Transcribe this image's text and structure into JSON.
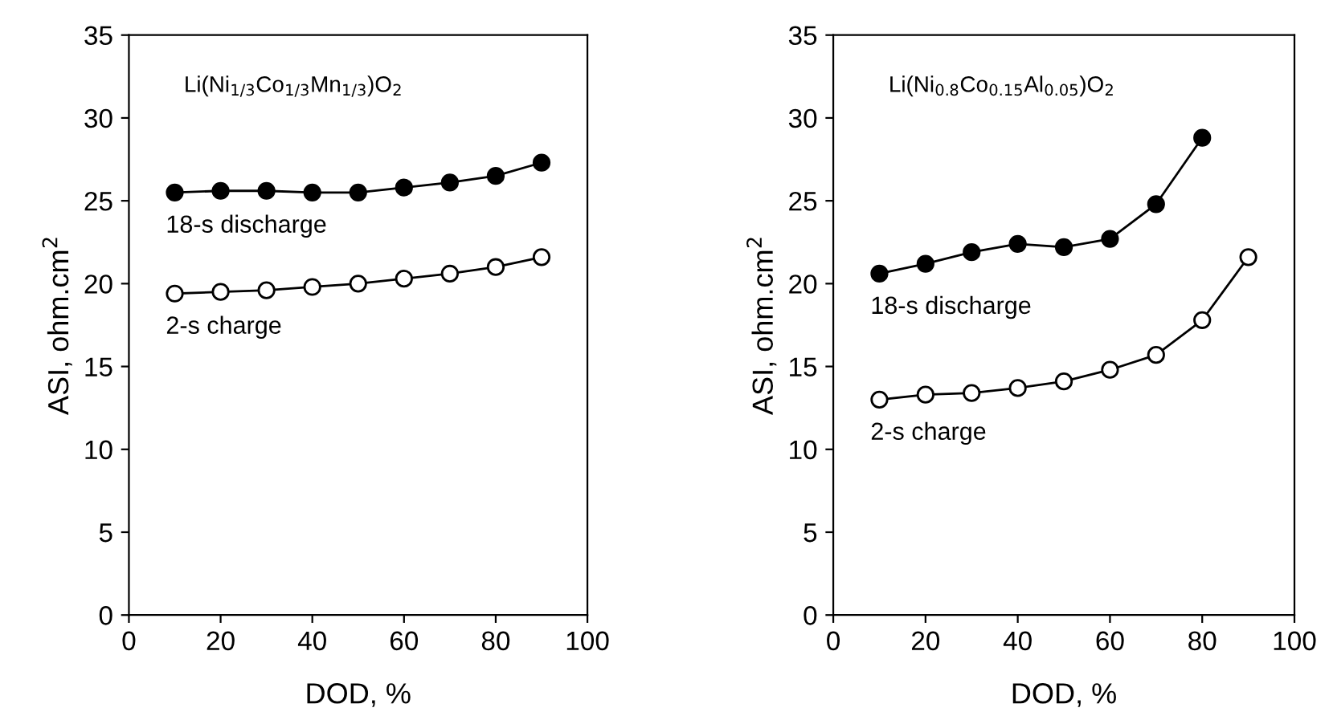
{
  "chart_data": [
    {
      "type": "line",
      "xlabel": "DOD, %",
      "ylabel": "ASI, ohm.cm$^{2}$",
      "annotations": [
        "Li(Ni$_{1/3}$Co$_{1/3}$Mn$_{1/3}$)O$_{2}$"
      ],
      "x": [
        10,
        20,
        30,
        40,
        50,
        60,
        70,
        80,
        90
      ],
      "xlim": [
        0,
        100
      ],
      "xticks": [
        0,
        20,
        40,
        60,
        80,
        100
      ],
      "ylim": [
        0,
        35
      ],
      "yticks": [
        0,
        5,
        10,
        15,
        20,
        25,
        30,
        35
      ],
      "marker": "circle",
      "legend": false,
      "grid": false,
      "series": [
        {
          "name": "18-s discharge",
          "color": "#000000",
          "values": [
            25.5,
            25.6,
            25.6,
            25.5,
            25.5,
            25.8,
            26.1,
            26.5,
            27.3
          ]
        },
        {
          "name": "2-s charge",
          "color": "#ffffff",
          "values": [
            19.4,
            19.5,
            19.6,
            19.8,
            20.0,
            20.3,
            20.6,
            21.0,
            21.6
          ]
        }
      ]
    },
    {
      "type": "line",
      "xlabel": "DOD, %",
      "ylabel": "ASI, ohm.cm$^{2}$",
      "annotations": [
        "Li(Ni$_{0.8}$Co$_{0.15}$Al$_{0.05}$)O$_{2}$"
      ],
      "x": [
        10,
        20,
        30,
        40,
        50,
        60,
        70,
        80,
        90
      ],
      "xlim": [
        0,
        100
      ],
      "xticks": [
        0,
        20,
        40,
        60,
        80,
        100
      ],
      "ylim": [
        0,
        35
      ],
      "yticks": [
        0,
        5,
        10,
        15,
        20,
        25,
        30,
        35
      ],
      "marker": "circle",
      "legend": false,
      "grid": false,
      "series": [
        {
          "name": "18-s discharge",
          "color": "#000000",
          "values": [
            20.6,
            21.2,
            21.9,
            22.4,
            22.2,
            22.7,
            24.8,
            28.8,
            null
          ]
        },
        {
          "name": "2-s charge",
          "color": "#ffffff",
          "values": [
            13.0,
            13.3,
            13.4,
            13.7,
            14.1,
            14.8,
            15.7,
            17.8,
            21.6
          ]
        }
      ]
    }
  ]
}
